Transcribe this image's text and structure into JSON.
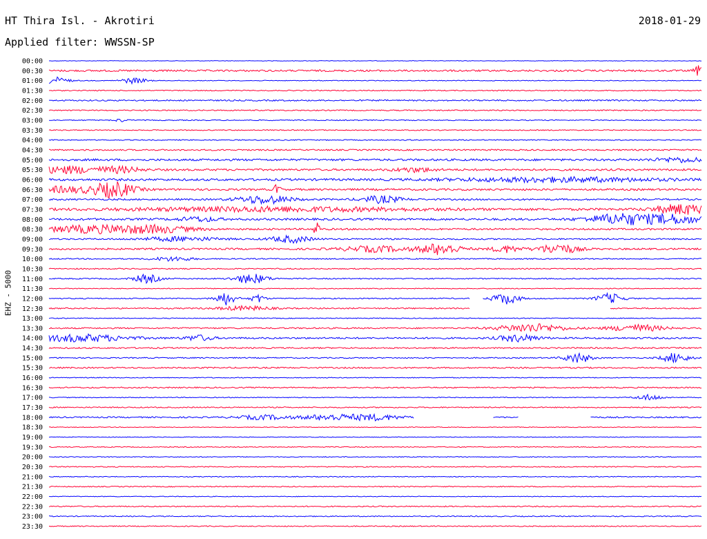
{
  "header": {
    "station": "HT Thira Isl. - Akrotiri",
    "date": "2018-01-29",
    "filter_label": "Applied filter: WWSSN-SP"
  },
  "chart_data": {
    "type": "helicorder",
    "title": "HT Thira Isl. - Akrotiri",
    "date": "2018-01-29",
    "filter": "WWSSN-SP",
    "ylabel": "EHZ - 5000",
    "row_labels": [
      "00:00",
      "00:30",
      "01:00",
      "01:30",
      "02:00",
      "02:30",
      "03:00",
      "03:30",
      "04:00",
      "04:30",
      "05:00",
      "05:30",
      "06:00",
      "06:30",
      "07:00",
      "07:30",
      "08:00",
      "08:30",
      "09:00",
      "09:30",
      "10:00",
      "10:30",
      "11:00",
      "11:30",
      "12:00",
      "12:30",
      "13:00",
      "13:30",
      "14:00",
      "14:30",
      "15:00",
      "15:30",
      "16:00",
      "16:30",
      "17:00",
      "17:30",
      "18:00",
      "18:30",
      "19:00",
      "19:30",
      "20:00",
      "20:30",
      "21:00",
      "21:30",
      "22:00",
      "22:30",
      "23:00",
      "23:30"
    ],
    "row_minutes": 30,
    "trace_colors": [
      "#0000ff",
      "#ff0033"
    ],
    "row_noise": [
      0.4,
      1.3,
      0.5,
      0.7,
      1.0,
      0.8,
      0.7,
      0.7,
      0.7,
      1.0,
      1.5,
      1.4,
      1.6,
      1.4,
      1.2,
      1.7,
      1.5,
      1.3,
      1.0,
      1.3,
      0.8,
      0.8,
      0.8,
      0.6,
      0.8,
      0.9,
      0.6,
      1.0,
      1.2,
      1.0,
      0.8,
      1.0,
      0.6,
      0.9,
      0.6,
      0.8,
      1.0,
      0.5,
      0.5,
      0.6,
      0.6,
      0.7,
      0.6,
      0.7,
      0.5,
      0.8,
      0.7,
      0.7
    ],
    "events": [
      {
        "row": 1,
        "pos": 0.995,
        "amp": 7,
        "width": 0.006
      },
      {
        "row": 2,
        "pos": 0.01,
        "amp": 5,
        "width": 0.02
      },
      {
        "row": 2,
        "pos": 0.13,
        "amp": 4,
        "width": 0.02
      },
      {
        "row": 6,
        "pos": 0.11,
        "amp": 2,
        "width": 0.01
      },
      {
        "row": 10,
        "pos": 0.97,
        "amp": 3,
        "width": 0.04
      },
      {
        "row": 11,
        "pos": 0.03,
        "amp": 5,
        "width": 0.05
      },
      {
        "row": 11,
        "pos": 0.11,
        "amp": 4,
        "width": 0.03
      },
      {
        "row": 11,
        "pos": 0.56,
        "amp": 3,
        "width": 0.03
      },
      {
        "row": 12,
        "pos": 0.78,
        "amp": 3,
        "width": 0.15
      },
      {
        "row": 13,
        "pos": 0.02,
        "amp": 4,
        "width": 0.07
      },
      {
        "row": 13,
        "pos": 0.1,
        "amp": 10,
        "width": 0.03
      },
      {
        "row": 13,
        "pos": 0.35,
        "amp": 11,
        "width": 0.004
      },
      {
        "row": 14,
        "pos": 0.33,
        "amp": 6,
        "width": 0.04
      },
      {
        "row": 14,
        "pos": 0.51,
        "amp": 5,
        "width": 0.03
      },
      {
        "row": 15,
        "pos": 0.35,
        "amp": 3,
        "width": 0.2
      },
      {
        "row": 15,
        "pos": 0.97,
        "amp": 7,
        "width": 0.04
      },
      {
        "row": 16,
        "pos": 0.23,
        "amp": 3,
        "width": 0.03
      },
      {
        "row": 16,
        "pos": 0.88,
        "amp": 8,
        "width": 0.05
      },
      {
        "row": 16,
        "pos": 0.96,
        "amp": 6,
        "width": 0.04
      },
      {
        "row": 17,
        "pos": 0.06,
        "amp": 5,
        "width": 0.07
      },
      {
        "row": 17,
        "pos": 0.16,
        "amp": 5,
        "width": 0.06
      },
      {
        "row": 17,
        "pos": 0.41,
        "amp": 14,
        "width": 0.004
      },
      {
        "row": 18,
        "pos": 0.2,
        "amp": 3,
        "width": 0.06
      },
      {
        "row": 18,
        "pos": 0.37,
        "amp": 5,
        "width": 0.03
      },
      {
        "row": 19,
        "pos": 0.5,
        "amp": 4,
        "width": 0.05
      },
      {
        "row": 19,
        "pos": 0.6,
        "amp": 8,
        "width": 0.03
      },
      {
        "row": 19,
        "pos": 0.7,
        "amp": 5,
        "width": 0.02
      },
      {
        "row": 19,
        "pos": 0.78,
        "amp": 7,
        "width": 0.03
      },
      {
        "row": 20,
        "pos": 0.19,
        "amp": 3,
        "width": 0.03
      },
      {
        "row": 22,
        "pos": 0.15,
        "amp": 6,
        "width": 0.02
      },
      {
        "row": 22,
        "pos": 0.31,
        "amp": 7,
        "width": 0.025
      },
      {
        "row": 24,
        "pos": 0.27,
        "amp": 9,
        "width": 0.015
      },
      {
        "row": 24,
        "pos": 0.32,
        "amp": 6,
        "width": 0.01
      },
      {
        "row": 24,
        "pos": 0.7,
        "amp": 8,
        "width": 0.02
      },
      {
        "row": 24,
        "pos": 0.86,
        "amp": 7,
        "width": 0.02
      },
      {
        "row": 25,
        "pos": 0.3,
        "amp": 3,
        "width": 0.04
      },
      {
        "row": 27,
        "pos": 0.74,
        "amp": 6,
        "width": 0.05
      },
      {
        "row": 27,
        "pos": 0.9,
        "amp": 5,
        "width": 0.04
      },
      {
        "row": 28,
        "pos": 0.05,
        "amp": 5,
        "width": 0.07
      },
      {
        "row": 28,
        "pos": 0.23,
        "amp": 4,
        "width": 0.02
      },
      {
        "row": 28,
        "pos": 0.72,
        "amp": 5,
        "width": 0.03
      },
      {
        "row": 30,
        "pos": 0.81,
        "amp": 7,
        "width": 0.02
      },
      {
        "row": 30,
        "pos": 0.96,
        "amp": 7,
        "width": 0.02
      },
      {
        "row": 34,
        "pos": 0.92,
        "amp": 4,
        "width": 0.02
      },
      {
        "row": 36,
        "pos": 0.33,
        "amp": 3,
        "width": 0.04
      },
      {
        "row": 36,
        "pos": 0.43,
        "amp": 4,
        "width": 0.04
      },
      {
        "row": 36,
        "pos": 0.5,
        "amp": 4,
        "width": 0.04
      }
    ],
    "gaps": [
      {
        "row": 24,
        "start": 0.645,
        "end": 0.665
      },
      {
        "row": 25,
        "start": 0.645,
        "end": 0.86
      },
      {
        "row": 36,
        "start": 0.56,
        "end": 0.68
      },
      {
        "row": 36,
        "start": 0.72,
        "end": 0.83
      }
    ]
  }
}
